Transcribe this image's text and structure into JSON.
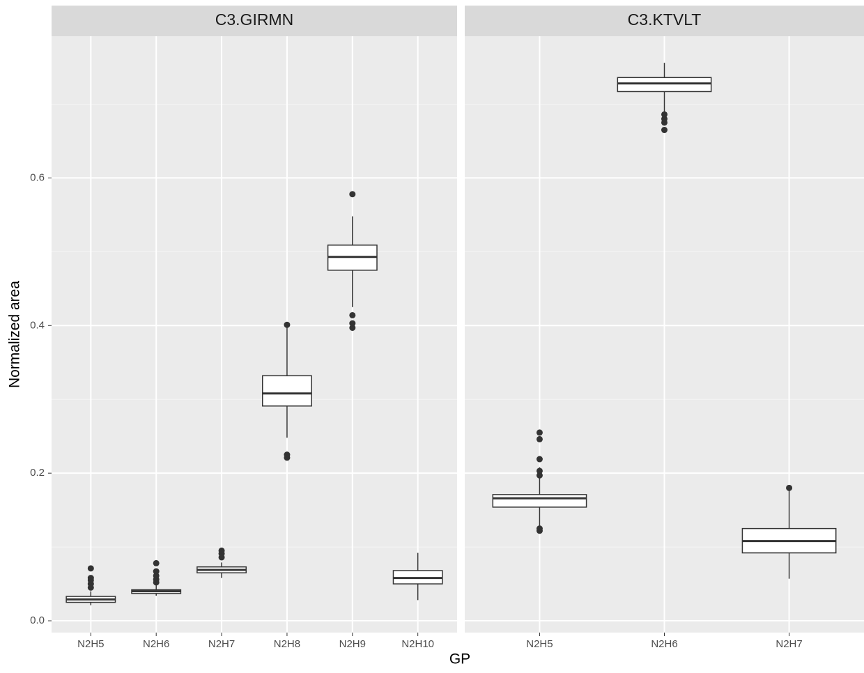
{
  "y_label": "Normalized area",
  "x_label": "GP",
  "chart_data": [
    {
      "type": "box",
      "title": "C3.GIRMN",
      "categories": [
        "N2H5",
        "N2H6",
        "N2H7",
        "N2H8",
        "N2H9",
        "N2H10"
      ],
      "boxes": [
        {
          "low": 0.021,
          "q1": 0.025,
          "median": 0.029,
          "q3": 0.033,
          "high": 0.04,
          "outliers": [
            0.045,
            0.05,
            0.055,
            0.058,
            0.071
          ]
        },
        {
          "low": 0.034,
          "q1": 0.037,
          "median": 0.04,
          "q3": 0.042,
          "high": 0.048,
          "outliers": [
            0.052,
            0.056,
            0.061,
            0.067,
            0.078
          ]
        },
        {
          "low": 0.058,
          "q1": 0.065,
          "median": 0.069,
          "q3": 0.073,
          "high": 0.079,
          "outliers": [
            0.086,
            0.091,
            0.095
          ]
        },
        {
          "low": 0.248,
          "q1": 0.291,
          "median": 0.308,
          "q3": 0.332,
          "high": 0.397,
          "outliers": [
            0.221,
            0.225,
            0.401
          ]
        },
        {
          "low": 0.425,
          "q1": 0.475,
          "median": 0.493,
          "q3": 0.509,
          "high": 0.548,
          "outliers": [
            0.397,
            0.403,
            0.414,
            0.578
          ]
        },
        {
          "low": 0.028,
          "q1": 0.05,
          "median": 0.058,
          "q3": 0.068,
          "high": 0.092,
          "outliers": []
        }
      ],
      "ylim": [
        -0.016,
        0.792
      ],
      "yticks": [
        {
          "value": 0,
          "label": "0.0"
        },
        0.2,
        0.4,
        0.6
      ],
      "minor_yticks": [
        0.1,
        0.3,
        0.5,
        0.7
      ],
      "grid": true
    },
    {
      "type": "box",
      "title": "C3.KTVLT",
      "categories": [
        "N2H5",
        "N2H6",
        "N2H7"
      ],
      "boxes": [
        {
          "low": 0.127,
          "q1": 0.154,
          "median": 0.166,
          "q3": 0.171,
          "high": 0.208,
          "outliers": [
            0.122,
            0.125,
            0.197,
            0.203,
            0.219,
            0.246,
            0.255
          ]
        },
        {
          "low": 0.69,
          "q1": 0.717,
          "median": 0.728,
          "q3": 0.736,
          "high": 0.756,
          "outliers": [
            0.665,
            0.675,
            0.68,
            0.686
          ]
        },
        {
          "low": 0.057,
          "q1": 0.092,
          "median": 0.108,
          "q3": 0.125,
          "high": 0.177,
          "outliers": [
            0.18
          ]
        }
      ],
      "ylim": [
        -0.016,
        0.792
      ],
      "yticks": [
        0,
        0.2,
        0.4,
        0.6
      ],
      "minor_yticks": [
        0.1,
        0.3,
        0.5,
        0.7
      ],
      "grid": true
    }
  ]
}
